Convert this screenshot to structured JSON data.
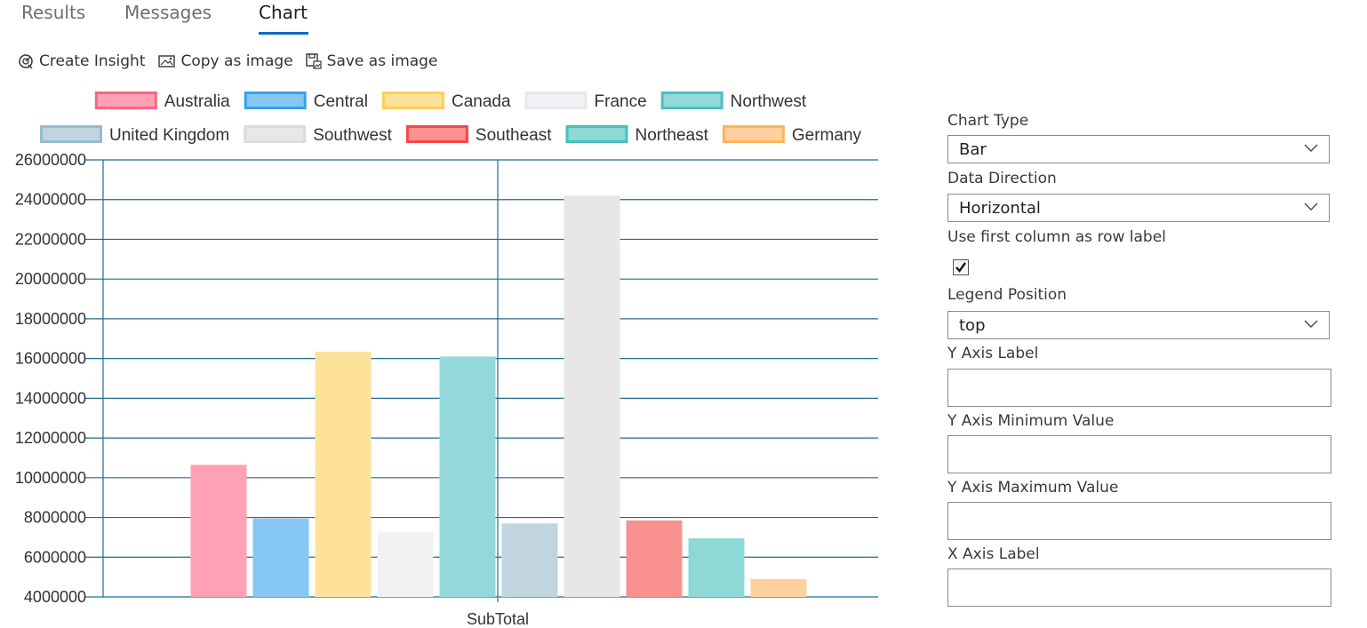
{
  "tabs": [
    {
      "label": "Results"
    },
    {
      "label": "Messages"
    },
    {
      "label": "Chart"
    }
  ],
  "toolbar": {
    "create_insight": "Create Insight",
    "copy_as_image": "Copy as image",
    "save_as_image": "Save as image"
  },
  "properties": {
    "chart_type_label": "Chart Type",
    "chart_type_value": "Bar",
    "data_direction_label": "Data Direction",
    "data_direction_value": "Horizontal",
    "first_column_label": "Use first column as row label",
    "first_column_checked": true,
    "legend_position_label": "Legend Position",
    "legend_position_value": "top",
    "y_axis_label_label": "Y Axis Label",
    "y_axis_label_value": "",
    "y_axis_min_label": "Y Axis Minimum Value",
    "y_axis_min_value": "",
    "y_axis_max_label": "Y Axis Maximum Value",
    "y_axis_max_value": "",
    "x_axis_label_label": "X Axis Label",
    "x_axis_label_value": ""
  },
  "chart_data": {
    "type": "bar",
    "categories": [
      "SubTotal"
    ],
    "ylim": [
      4000000,
      26000000
    ],
    "yticks": [
      4000000,
      6000000,
      8000000,
      10000000,
      12000000,
      14000000,
      16000000,
      18000000,
      20000000,
      22000000,
      24000000,
      26000000
    ],
    "grid": true,
    "legend_position": "top",
    "series": [
      {
        "name": "Australia",
        "values": [
          10650000
        ],
        "fill": "#ffa1b5",
        "stroke": "#ff6384"
      },
      {
        "name": "Central",
        "values": [
          7950000
        ],
        "fill": "#86c7f3",
        "stroke": "#36a2eb"
      },
      {
        "name": "Canada",
        "values": [
          16350000
        ],
        "fill": "#ffe29a",
        "stroke": "#ffce56"
      },
      {
        "name": "France",
        "values": [
          7250000
        ],
        "fill": "#f1f2f4",
        "stroke": "#e7e9ed"
      },
      {
        "name": "Northwest",
        "values": [
          16100000
        ],
        "fill": "#93d9d9",
        "stroke": "#4bc0c0"
      },
      {
        "name": "United Kingdom",
        "values": [
          7700000
        ],
        "fill": "#c1d5e0",
        "stroke": "#97bbcd"
      },
      {
        "name": "Southwest",
        "values": [
          24200000
        ],
        "fill": "#e7e7e7",
        "stroke": "#dcdcdc"
      },
      {
        "name": "Southeast",
        "values": [
          7850000
        ],
        "fill": "#fa9191",
        "stroke": "#f7464a"
      },
      {
        "name": "Northeast",
        "values": [
          6950000
        ],
        "fill": "#8ed8d5",
        "stroke": "#46bfbd"
      },
      {
        "name": "Germany",
        "values": [
          4900000
        ],
        "fill": "#ffd09e",
        "stroke": "#fdb45c"
      }
    ]
  }
}
